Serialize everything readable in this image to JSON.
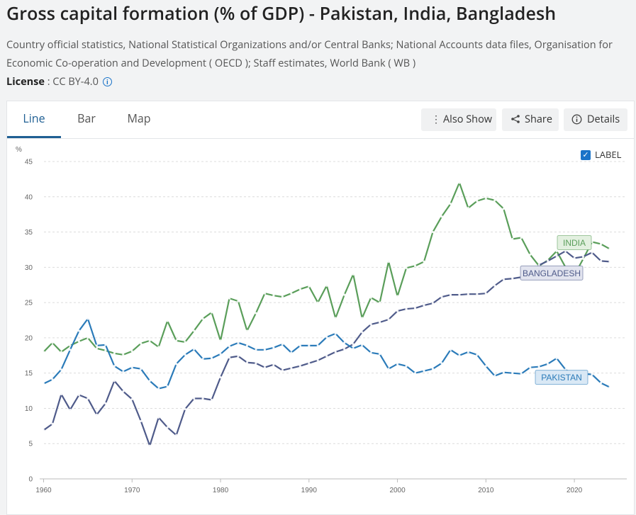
{
  "page": {
    "title": "Gross capital formation (% of GDP) - Pakistan, India, Bangladesh",
    "source": "Country official statistics, National Statistical Organizations and/or Central Banks; National Accounts data files, Organisation for Economic Co-operation and Development ( OECD ); Staff estimates, World Bank ( WB )",
    "license_label": "License",
    "license_value": " : CC BY-4.0"
  },
  "tabs": [
    {
      "label": "Line",
      "active": true
    },
    {
      "label": "Bar",
      "active": false
    },
    {
      "label": "Map",
      "active": false
    }
  ],
  "toolbar": {
    "also_show": "Also Show",
    "share": "Share",
    "details": "Details"
  },
  "label_toggle": {
    "label": "LABEL",
    "checked": true
  },
  "chart_data": {
    "type": "line",
    "ylabel": "%",
    "ylim": [
      0,
      45
    ],
    "yticks": [
      0,
      5,
      10,
      15,
      20,
      25,
      30,
      35,
      40,
      45
    ],
    "xlim": [
      1960,
      2024
    ],
    "xticks": [
      1960,
      1970,
      1980,
      1990,
      2000,
      2010,
      2020
    ],
    "grid": true,
    "x": [
      1960,
      1961,
      1962,
      1963,
      1964,
      1965,
      1966,
      1967,
      1968,
      1969,
      1970,
      1971,
      1972,
      1973,
      1974,
      1975,
      1976,
      1977,
      1978,
      1979,
      1980,
      1981,
      1982,
      1983,
      1984,
      1985,
      1986,
      1987,
      1988,
      1989,
      1990,
      1991,
      1992,
      1993,
      1994,
      1995,
      1996,
      1997,
      1998,
      1999,
      2000,
      2001,
      2002,
      2003,
      2004,
      2005,
      2006,
      2007,
      2008,
      2009,
      2010,
      2011,
      2012,
      2013,
      2014,
      2015,
      2016,
      2017,
      2018,
      2019,
      2020,
      2021,
      2022,
      2023,
      2024
    ],
    "series": [
      {
        "name": "INDIA",
        "color": "#5a9e5a",
        "label_bg": "#e3f0e0",
        "values": [
          18.0,
          19.3,
          18.0,
          18.9,
          19.5,
          20.0,
          18.5,
          18.2,
          17.8,
          17.6,
          18.1,
          19.2,
          19.6,
          18.7,
          22.4,
          19.6,
          19.4,
          21.0,
          22.7,
          23.6,
          19.6,
          25.6,
          25.2,
          21.0,
          23.5,
          26.3,
          26.0,
          25.8,
          26.3,
          26.9,
          27.3,
          25.0,
          27.4,
          22.8,
          26.1,
          29.0,
          22.8,
          25.7,
          25.0,
          30.8,
          25.9,
          29.9,
          30.2,
          30.8,
          35.0,
          37.2,
          39.0,
          42.0,
          38.4,
          39.4,
          39.8,
          39.5,
          38.3,
          34.0,
          34.2,
          31.8,
          30.2,
          31.0,
          32.3,
          30.0,
          28.9,
          31.2,
          33.6,
          33.3,
          32.6
        ]
      },
      {
        "name": "BANGLADESH",
        "color": "#4f5b8a",
        "label_bg": "#e2e4ef",
        "values": [
          6.9,
          7.8,
          12.0,
          9.8,
          11.9,
          11.4,
          9.1,
          10.7,
          13.9,
          12.4,
          11.3,
          8.2,
          4.7,
          8.7,
          7.3,
          6.2,
          9.9,
          11.4,
          11.4,
          11.2,
          14.4,
          17.2,
          17.4,
          16.5,
          16.4,
          15.8,
          16.2,
          15.4,
          15.7,
          16.0,
          16.4,
          16.8,
          17.4,
          18.0,
          18.4,
          19.1,
          20.8,
          21.9,
          22.2,
          22.6,
          23.8,
          24.1,
          24.2,
          24.6,
          24.9,
          25.8,
          26.1,
          26.1,
          26.2,
          26.2,
          26.3,
          27.4,
          28.3,
          28.4,
          28.6,
          28.9,
          30.3,
          30.9,
          31.6,
          32.3,
          31.3,
          31.5,
          32.1,
          30.9,
          30.8
        ]
      },
      {
        "name": "PAKISTAN",
        "color": "#2b7bb9",
        "label_bg": "#d9e8f5",
        "values": [
          13.5,
          14.1,
          15.5,
          18.3,
          21.0,
          22.7,
          18.9,
          19.0,
          16.0,
          15.2,
          15.8,
          15.6,
          13.9,
          12.8,
          13.1,
          16.3,
          17.6,
          18.4,
          17.0,
          17.1,
          17.7,
          18.8,
          19.3,
          18.9,
          18.3,
          18.3,
          18.6,
          19.1,
          17.9,
          18.9,
          18.9,
          18.9,
          20.1,
          20.6,
          19.3,
          18.5,
          19.0,
          17.9,
          17.7,
          15.6,
          16.3,
          16.0,
          15.0,
          15.3,
          15.6,
          16.4,
          18.3,
          17.5,
          18.0,
          17.6,
          16.0,
          14.6,
          15.1,
          15.0,
          14.9,
          15.8,
          15.9,
          16.3,
          17.1,
          15.5,
          14.6,
          14.9,
          14.8,
          13.6,
          13.0
        ]
      }
    ]
  }
}
